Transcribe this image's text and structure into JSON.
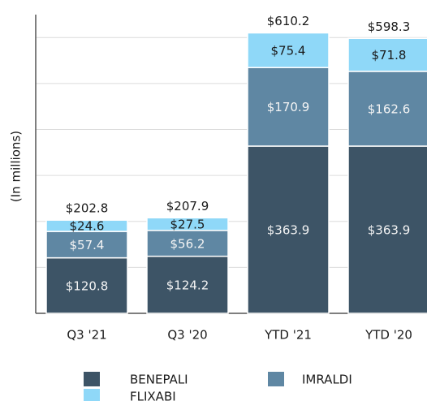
{
  "chart_data": {
    "type": "stacked_bar",
    "y_label": "(In millions)",
    "categories": [
      "Q3 '21",
      "Q3 '20",
      "YTD '21",
      "YTD '20"
    ],
    "series": [
      {
        "name": "BENEPALI",
        "color": "#3d5466",
        "values": [
          120.8,
          124.2,
          363.9,
          363.9
        ],
        "value_labels": [
          "$120.8",
          "$124.2",
          "$363.9",
          "$363.9"
        ]
      },
      {
        "name": "IMRALDI",
        "color": "#5f87a3",
        "values": [
          57.4,
          56.2,
          170.9,
          162.6
        ],
        "value_labels": [
          "$57.4",
          "$56.2",
          "$170.9",
          "$162.6"
        ]
      },
      {
        "name": "FLIXABI",
        "color": "#8fd8f8",
        "values": [
          24.6,
          27.5,
          75.4,
          71.8
        ],
        "value_labels": [
          "$24.6",
          "$27.5",
          "$75.4",
          "$71.8"
        ]
      }
    ],
    "totals": [
      202.8,
      207.9,
      610.2,
      598.3
    ],
    "total_labels": [
      "$202.8",
      "$207.9",
      "$610.2",
      "$598.3"
    ],
    "ylim": [
      0,
      650
    ],
    "yticks": [
      0,
      100,
      200,
      300,
      400,
      500,
      600
    ],
    "grid": true
  }
}
